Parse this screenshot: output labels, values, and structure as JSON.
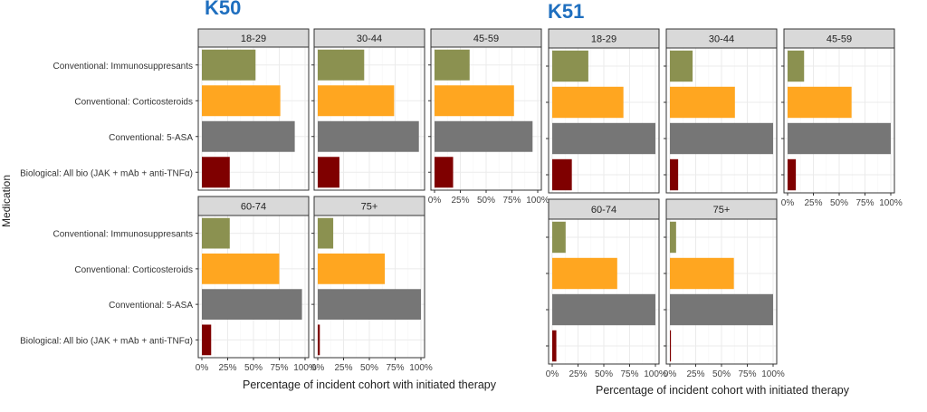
{
  "title_left": "K50",
  "title_right": "K51",
  "ylabel": "Medication",
  "xlabel": "Percentage of incident cohort with initiated therapy",
  "categories": [
    "Conventional: Immunosuppresants",
    "Conventional: Corticosteroids",
    "Conventional: 5-ASA",
    "Biological: All bio (JAK + mAb + anti-TNFα)"
  ],
  "x_ticks": [
    "0%",
    "25%",
    "50%",
    "75%",
    "100%"
  ],
  "colors": {
    "immunosuppressants": "#8b9150",
    "corticosteroids": "#ffa620",
    "five_asa": "#767676",
    "biological": "#7f0000",
    "strip_fill": "#d9d9d9",
    "title": "#1f6fbf"
  },
  "chart_data": [
    {
      "type": "bar",
      "title": "K50",
      "xlabel": "Percentage of incident cohort with initiated therapy",
      "ylabel": "Medication",
      "xlim": [
        0,
        100
      ],
      "orientation": "horizontal",
      "categories": [
        "Conventional: Immunosuppresants",
        "Conventional: Corticosteroids",
        "Conventional: 5-ASA",
        "Biological: All bio (JAK + mAb + anti-TNFα)"
      ],
      "panels": [
        {
          "label": "18-29",
          "values": [
            52,
            76,
            90,
            27
          ]
        },
        {
          "label": "30-44",
          "values": [
            45,
            74,
            98,
            21
          ]
        },
        {
          "label": "45-59",
          "values": [
            34,
            77,
            95,
            18
          ]
        },
        {
          "label": "60-74",
          "values": [
            27,
            75,
            97,
            9
          ]
        },
        {
          "label": "75+",
          "values": [
            15,
            65,
            100,
            2
          ]
        }
      ]
    },
    {
      "type": "bar",
      "title": "K51",
      "xlabel": "Percentage of incident cohort with initiated therapy",
      "ylabel": "",
      "xlim": [
        0,
        100
      ],
      "orientation": "horizontal",
      "categories": [
        "Conventional: Immunosuppresants",
        "Conventional: Corticosteroids",
        "Conventional: 5-ASA",
        "Biological: All bio (JAK + mAb + anti-TNFα)"
      ],
      "panels": [
        {
          "label": "18-29",
          "values": [
            35,
            69,
            100,
            19
          ]
        },
        {
          "label": "30-44",
          "values": [
            22,
            63,
            100,
            8
          ]
        },
        {
          "label": "45-59",
          "values": [
            16,
            62,
            100,
            8
          ]
        },
        {
          "label": "60-74",
          "values": [
            13,
            63,
            100,
            4
          ]
        },
        {
          "label": "75+",
          "values": [
            6,
            62,
            100,
            1
          ]
        }
      ]
    }
  ]
}
